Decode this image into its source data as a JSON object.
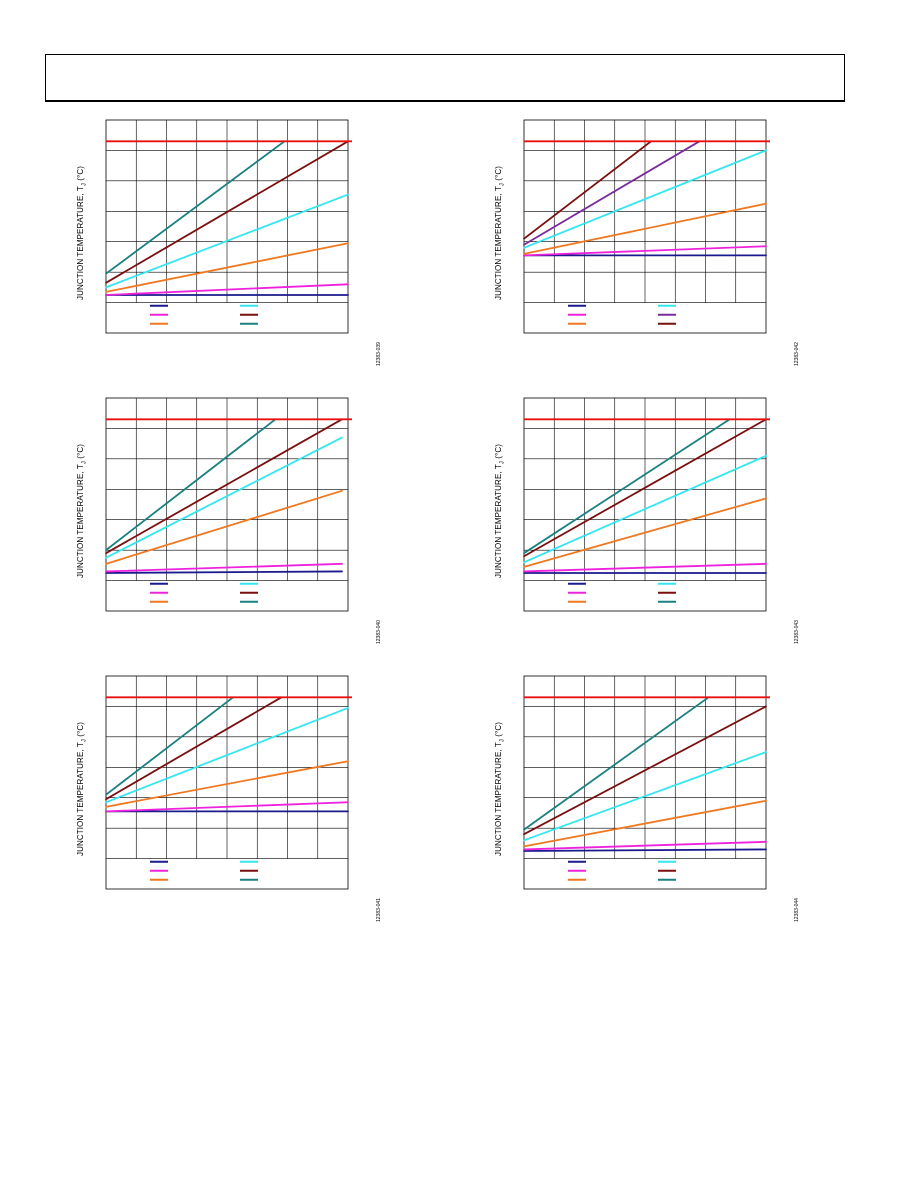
{
  "page": {
    "header_text": ""
  },
  "colors": {
    "limit": "#e81010",
    "s1": "#1a1a8c",
    "s2": "#ee22dd",
    "s3": "#f07820",
    "s4": "#33e6f0",
    "s5": "#7a0f0f",
    "s6": "#1a8080",
    "s7": "#7a2a9a"
  },
  "chart_data": [
    {
      "type": "line",
      "ylabel": "JUNCTION TEMPERATURE, T",
      "ylabel_sub": "J",
      "ylabel_unit": " (°C)",
      "figure_code": "12383-039",
      "xlim": [
        0,
        8
      ],
      "ylim": [
        -1,
        6
      ],
      "grid": true,
      "legend_rows": 3,
      "limit_line": 5.3,
      "series": [
        {
          "color": "s1",
          "x": [
            0,
            8
          ],
          "y": [
            0.25,
            0.25
          ]
        },
        {
          "color": "s2",
          "x": [
            0,
            8
          ],
          "y": [
            0.25,
            0.6
          ]
        },
        {
          "color": "s3",
          "x": [
            0,
            8
          ],
          "y": [
            0.35,
            1.95
          ]
        },
        {
          "color": "s4",
          "x": [
            0,
            8
          ],
          "y": [
            0.5,
            3.55
          ]
        },
        {
          "color": "s5",
          "x": [
            0,
            8
          ],
          "y": [
            0.65,
            5.3
          ]
        },
        {
          "color": "s6",
          "x": [
            0,
            5.9
          ],
          "y": [
            0.95,
            5.3
          ]
        }
      ]
    },
    {
      "type": "line",
      "ylabel": "JUNCTION TEMPERATURE, T",
      "ylabel_sub": "J",
      "ylabel_unit": " (°C)",
      "figure_code": "12383-042",
      "xlim": [
        0,
        8
      ],
      "ylim": [
        -1,
        6
      ],
      "grid": true,
      "legend_rows": 3,
      "limit_line": 5.3,
      "series": [
        {
          "color": "s1",
          "x": [
            0,
            8
          ],
          "y": [
            1.55,
            1.55
          ]
        },
        {
          "color": "s2",
          "x": [
            0,
            8
          ],
          "y": [
            1.55,
            1.85
          ]
        },
        {
          "color": "s3",
          "x": [
            0,
            8
          ],
          "y": [
            1.6,
            3.25
          ]
        },
        {
          "color": "s4",
          "x": [
            0,
            8
          ],
          "y": [
            1.8,
            5.0
          ]
        },
        {
          "color": "s7",
          "x": [
            0,
            5.8
          ],
          "y": [
            1.9,
            5.3
          ]
        },
        {
          "color": "s5",
          "x": [
            0,
            4.2
          ],
          "y": [
            2.1,
            5.3
          ]
        }
      ]
    },
    {
      "type": "line",
      "ylabel": "JUNCTION TEMPERATURE, T",
      "ylabel_sub": "J",
      "ylabel_unit": " (°C)",
      "figure_code": "12383-040",
      "xlim": [
        0,
        8
      ],
      "ylim": [
        -1,
        6
      ],
      "grid": true,
      "legend_rows": 3,
      "limit_line": 5.3,
      "series": [
        {
          "color": "s1",
          "x": [
            0,
            7.8
          ],
          "y": [
            0.25,
            0.3
          ]
        },
        {
          "color": "s2",
          "x": [
            0,
            7.8
          ],
          "y": [
            0.3,
            0.55
          ]
        },
        {
          "color": "s3",
          "x": [
            0,
            7.8
          ],
          "y": [
            0.55,
            2.95
          ]
        },
        {
          "color": "s4",
          "x": [
            0,
            7.8
          ],
          "y": [
            0.75,
            4.7
          ]
        },
        {
          "color": "s5",
          "x": [
            0,
            7.8
          ],
          "y": [
            0.9,
            5.3
          ]
        },
        {
          "color": "s6",
          "x": [
            0,
            5.6
          ],
          "y": [
            1.0,
            5.3
          ]
        }
      ]
    },
    {
      "type": "line",
      "ylabel": "JUNCTION TEMPERATURE, T",
      "ylabel_sub": "J",
      "ylabel_unit": " (°C)",
      "figure_code": "12383-043",
      "xlim": [
        0,
        8
      ],
      "ylim": [
        -1,
        6
      ],
      "grid": true,
      "legend_rows": 3,
      "limit_line": 5.3,
      "series": [
        {
          "color": "s1",
          "x": [
            0,
            8
          ],
          "y": [
            0.25,
            0.25
          ]
        },
        {
          "color": "s2",
          "x": [
            0,
            8
          ],
          "y": [
            0.3,
            0.55
          ]
        },
        {
          "color": "s3",
          "x": [
            0,
            8
          ],
          "y": [
            0.45,
            2.7
          ]
        },
        {
          "color": "s4",
          "x": [
            0,
            8
          ],
          "y": [
            0.6,
            4.1
          ]
        },
        {
          "color": "s5",
          "x": [
            0,
            8
          ],
          "y": [
            0.8,
            5.3
          ]
        },
        {
          "color": "s6",
          "x": [
            0,
            6.8
          ],
          "y": [
            0.9,
            5.3
          ]
        }
      ]
    },
    {
      "type": "line",
      "ylabel": "JUNCTION TEMPERATURE, T",
      "ylabel_sub": "J",
      "ylabel_unit": " (°C)",
      "figure_code": "12383-041",
      "xlim": [
        0,
        8
      ],
      "ylim": [
        -1,
        6
      ],
      "grid": true,
      "legend_rows": 3,
      "limit_line": 5.3,
      "series": [
        {
          "color": "s1",
          "x": [
            0,
            8
          ],
          "y": [
            1.55,
            1.55
          ]
        },
        {
          "color": "s2",
          "x": [
            0,
            8
          ],
          "y": [
            1.55,
            1.85
          ]
        },
        {
          "color": "s3",
          "x": [
            0,
            8
          ],
          "y": [
            1.7,
            3.2
          ]
        },
        {
          "color": "s4",
          "x": [
            0,
            8
          ],
          "y": [
            1.85,
            4.95
          ]
        },
        {
          "color": "s5",
          "x": [
            0,
            5.8
          ],
          "y": [
            1.95,
            5.3
          ]
        },
        {
          "color": "s6",
          "x": [
            0,
            4.2
          ],
          "y": [
            2.1,
            5.3
          ]
        }
      ]
    },
    {
      "type": "line",
      "ylabel": "JUNCTION TEMPERATURE, T",
      "ylabel_sub": "J",
      "ylabel_unit": " (°C)",
      "figure_code": "12383-044",
      "xlim": [
        0,
        8
      ],
      "ylim": [
        -1,
        6
      ],
      "grid": true,
      "legend_rows": 3,
      "limit_line": 5.3,
      "series": [
        {
          "color": "s1",
          "x": [
            0,
            8
          ],
          "y": [
            0.25,
            0.3
          ]
        },
        {
          "color": "s2",
          "x": [
            0,
            8
          ],
          "y": [
            0.3,
            0.55
          ]
        },
        {
          "color": "s3",
          "x": [
            0,
            8
          ],
          "y": [
            0.4,
            1.9
          ]
        },
        {
          "color": "s4",
          "x": [
            0,
            8
          ],
          "y": [
            0.6,
            3.5
          ]
        },
        {
          "color": "s5",
          "x": [
            0,
            8
          ],
          "y": [
            0.8,
            5.0
          ]
        },
        {
          "color": "s6",
          "x": [
            0,
            6.1
          ],
          "y": [
            0.95,
            5.3
          ]
        }
      ]
    }
  ]
}
